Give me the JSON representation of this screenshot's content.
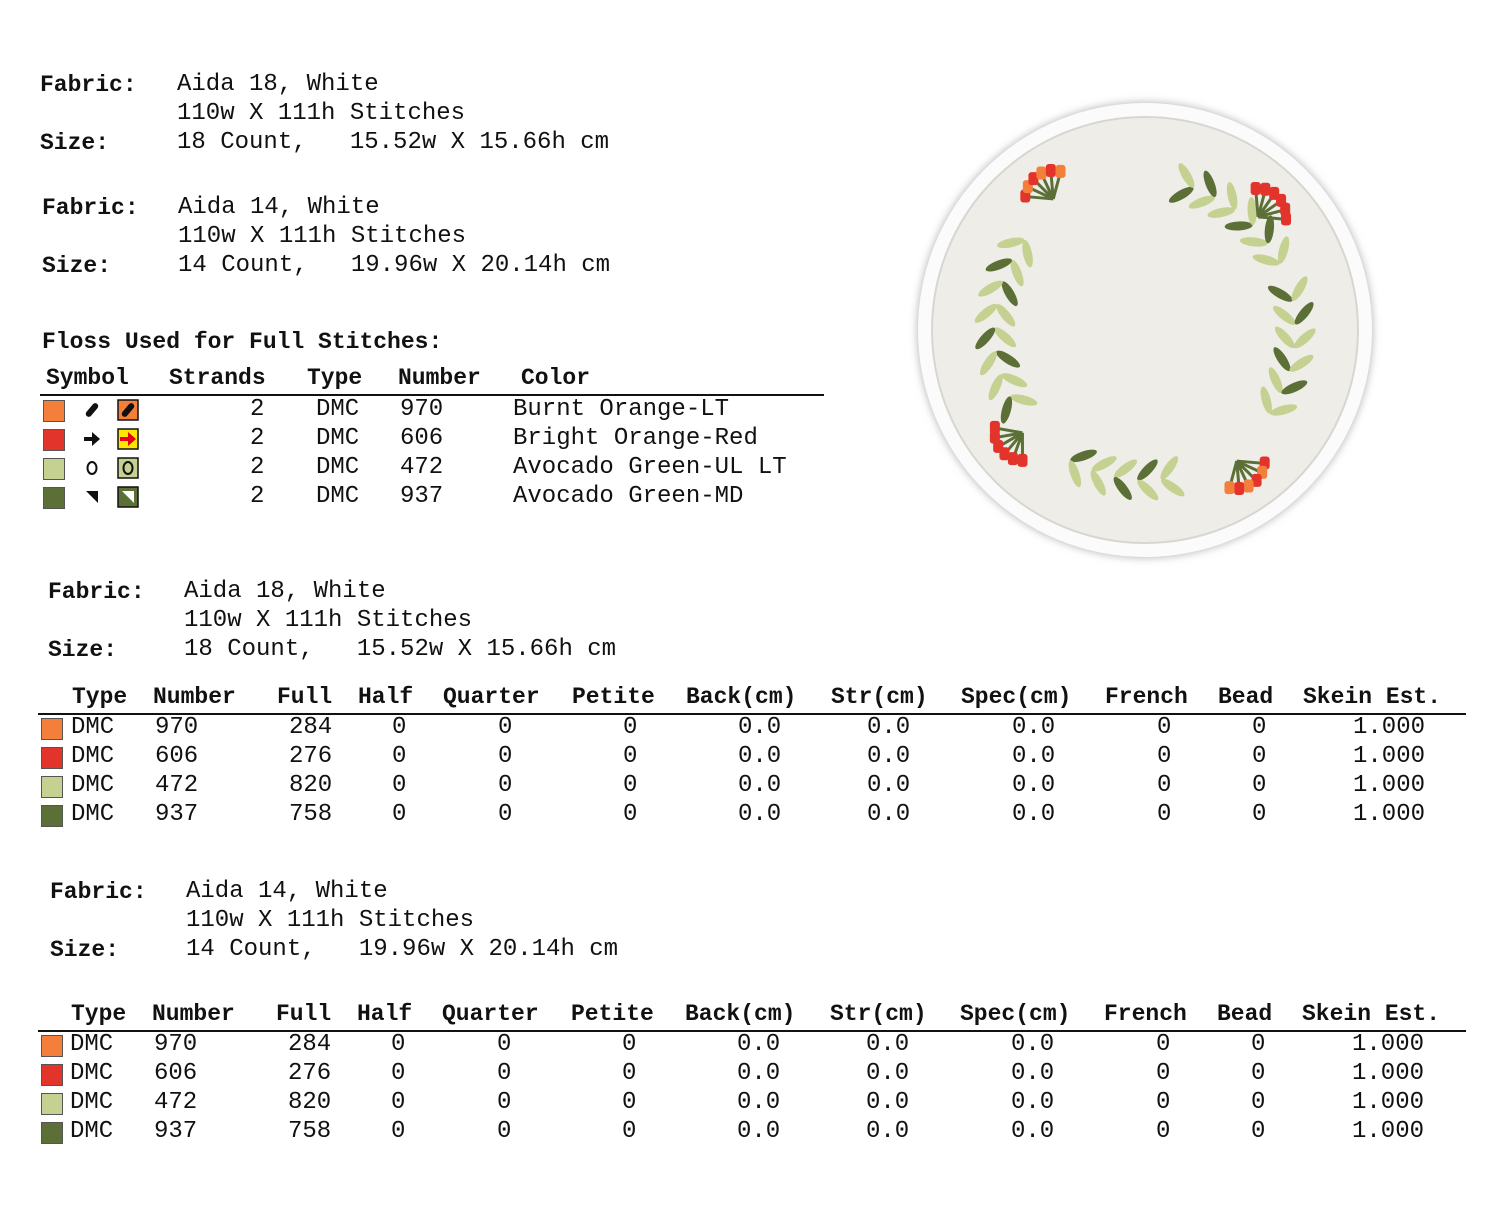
{
  "fabric_blocks": [
    {
      "fabric_label": "Fabric:",
      "fabric": "Aida 18, White",
      "stitches": "110w X 111h Stitches",
      "size_label": "Size:",
      "size": "18 Count,   15.52w X 15.66h cm"
    },
    {
      "fabric_label": "Fabric:",
      "fabric": "Aida 14, White",
      "stitches": "110w X 111h Stitches",
      "size_label": "Size:",
      "size": "14 Count,   19.96w X 20.14h cm"
    },
    {
      "fabric_label": "Fabric:",
      "fabric": "Aida 18, White",
      "stitches": "110w X 111h Stitches",
      "size_label": "Size:",
      "size": "18 Count,   15.52w X 15.66h cm"
    },
    {
      "fabric_label": "Fabric:",
      "fabric": "Aida 14, White",
      "stitches": "110w X 111h Stitches",
      "size_label": "Size:",
      "size": "14 Count,   19.96w X 20.14h cm"
    }
  ],
  "floss": {
    "title": "Floss Used for Full Stitches:",
    "headers": [
      "Symbol",
      "Strands",
      "Type",
      "Number",
      "Color"
    ],
    "rows": [
      {
        "swatch": "#f47f3a",
        "strands": "2",
        "type": "DMC",
        "number": "970",
        "color": "Burnt Orange-LT"
      },
      {
        "swatch": "#e2342a",
        "strands": "2",
        "type": "DMC",
        "number": "606",
        "color": "Bright Orange-Red"
      },
      {
        "swatch": "#c5d190",
        "strands": "2",
        "type": "DMC",
        "number": "472",
        "color": "Avocado Green-UL LT"
      },
      {
        "swatch": "#5b6f37",
        "strands": "2",
        "type": "DMC",
        "number": "937",
        "color": "Avocado Green-MD"
      }
    ]
  },
  "usage_tables": [
    {
      "headers": [
        "Type",
        "Number",
        "Full",
        "Half",
        "Quarter",
        "Petite",
        "Back(cm)",
        "Str(cm)",
        "Spec(cm)",
        "French",
        "Bead",
        "Skein Est."
      ],
      "rows": [
        {
          "swatch": "#f47f3a",
          "cells": [
            "DMC",
            "970",
            "284",
            "0",
            "0",
            "0",
            "0.0",
            "0.0",
            "0.0",
            "0",
            "0",
            "1.000"
          ]
        },
        {
          "swatch": "#e2342a",
          "cells": [
            "DMC",
            "606",
            "276",
            "0",
            "0",
            "0",
            "0.0",
            "0.0",
            "0.0",
            "0",
            "0",
            "1.000"
          ]
        },
        {
          "swatch": "#c5d190",
          "cells": [
            "DMC",
            "472",
            "820",
            "0",
            "0",
            "0",
            "0.0",
            "0.0",
            "0.0",
            "0",
            "0",
            "1.000"
          ]
        },
        {
          "swatch": "#5b6f37",
          "cells": [
            "DMC",
            "937",
            "758",
            "0",
            "0",
            "0",
            "0.0",
            "0.0",
            "0.0",
            "0",
            "0",
            "1.000"
          ]
        }
      ]
    },
    {
      "headers": [
        "Type",
        "Number",
        "Full",
        "Half",
        "Quarter",
        "Petite",
        "Back(cm)",
        "Str(cm)",
        "Spec(cm)",
        "French",
        "Bead",
        "Skein Est."
      ],
      "rows": [
        {
          "swatch": "#f47f3a",
          "cells": [
            "DMC",
            "970",
            "284",
            "0",
            "0",
            "0",
            "0.0",
            "0.0",
            "0.0",
            "0",
            "0",
            "1.000"
          ]
        },
        {
          "swatch": "#e2342a",
          "cells": [
            "DMC",
            "606",
            "276",
            "0",
            "0",
            "0",
            "0.0",
            "0.0",
            "0.0",
            "0",
            "0",
            "1.000"
          ]
        },
        {
          "swatch": "#c5d190",
          "cells": [
            "DMC",
            "472",
            "820",
            "0",
            "0",
            "0",
            "0.0",
            "0.0",
            "0.0",
            "0",
            "0",
            "1.000"
          ]
        },
        {
          "swatch": "#5b6f37",
          "cells": [
            "DMC",
            "937",
            "758",
            "0",
            "0",
            "0",
            "0.0",
            "0.0",
            "0.0",
            "0",
            "0",
            "1.000"
          ]
        }
      ]
    }
  ]
}
